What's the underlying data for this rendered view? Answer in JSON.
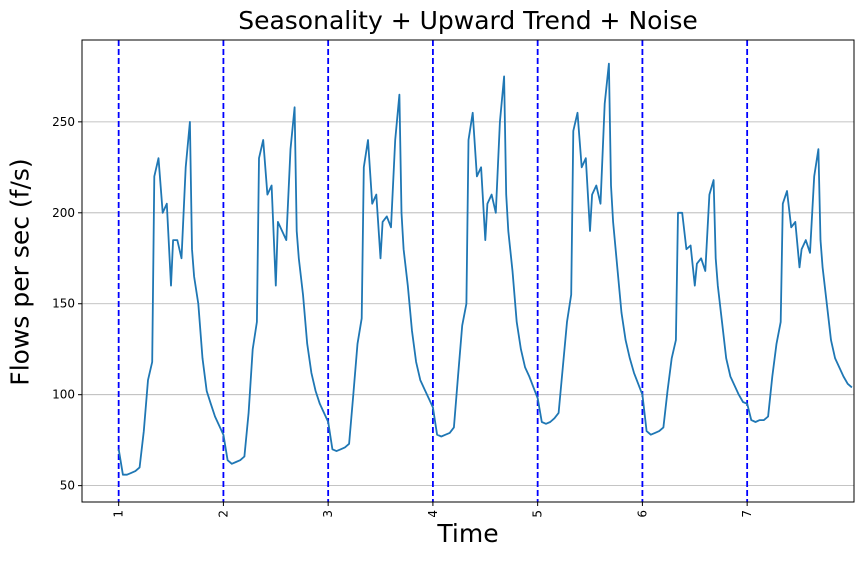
{
  "chart_data": {
    "type": "line",
    "title": "Seasonality + Upward Trend + Noise",
    "xlabel": "Time",
    "ylabel": "Flows per sec (f/s)",
    "xlim": [
      0.65,
      8.02
    ],
    "ylim": [
      41,
      295
    ],
    "xticks": [
      1,
      2,
      3,
      4,
      5,
      6,
      7
    ],
    "yticks": [
      50,
      100,
      150,
      200,
      250
    ],
    "grid": "y-major",
    "line_color": "#1f77b4",
    "vline_color": "#0000ff",
    "vlines": [
      1,
      2,
      3,
      4,
      5,
      6,
      7
    ],
    "series": [
      {
        "values": [
          [
            1.0,
            70
          ],
          [
            1.04,
            56
          ],
          [
            1.08,
            56
          ],
          [
            1.12,
            57
          ],
          [
            1.16,
            58
          ],
          [
            1.2,
            60
          ],
          [
            1.24,
            80
          ],
          [
            1.28,
            108
          ],
          [
            1.32,
            118
          ],
          [
            1.34,
            220
          ],
          [
            1.38,
            230
          ],
          [
            1.42,
            200
          ],
          [
            1.46,
            205
          ],
          [
            1.5,
            160
          ],
          [
            1.52,
            185
          ],
          [
            1.56,
            185
          ],
          [
            1.6,
            175
          ],
          [
            1.64,
            225
          ],
          [
            1.68,
            250
          ],
          [
            1.7,
            180
          ],
          [
            1.72,
            165
          ],
          [
            1.76,
            150
          ],
          [
            1.8,
            120
          ],
          [
            1.84,
            102
          ],
          [
            1.88,
            95
          ],
          [
            1.92,
            88
          ],
          [
            1.96,
            83
          ],
          [
            2.0,
            78
          ],
          [
            2.04,
            64
          ],
          [
            2.08,
            62
          ],
          [
            2.12,
            63
          ],
          [
            2.16,
            64
          ],
          [
            2.2,
            66
          ],
          [
            2.24,
            90
          ],
          [
            2.28,
            125
          ],
          [
            2.32,
            140
          ],
          [
            2.34,
            230
          ],
          [
            2.38,
            240
          ],
          [
            2.42,
            210
          ],
          [
            2.46,
            215
          ],
          [
            2.5,
            160
          ],
          [
            2.52,
            195
          ],
          [
            2.56,
            190
          ],
          [
            2.6,
            185
          ],
          [
            2.64,
            235
          ],
          [
            2.68,
            258
          ],
          [
            2.7,
            190
          ],
          [
            2.72,
            175
          ],
          [
            2.76,
            155
          ],
          [
            2.8,
            128
          ],
          [
            2.84,
            112
          ],
          [
            2.88,
            102
          ],
          [
            2.92,
            95
          ],
          [
            2.96,
            90
          ],
          [
            3.0,
            85
          ],
          [
            3.04,
            70
          ],
          [
            3.08,
            69
          ],
          [
            3.12,
            70
          ],
          [
            3.16,
            71
          ],
          [
            3.2,
            73
          ],
          [
            3.24,
            100
          ],
          [
            3.28,
            128
          ],
          [
            3.32,
            142
          ],
          [
            3.34,
            225
          ],
          [
            3.38,
            240
          ],
          [
            3.42,
            205
          ],
          [
            3.46,
            210
          ],
          [
            3.5,
            175
          ],
          [
            3.52,
            195
          ],
          [
            3.56,
            198
          ],
          [
            3.6,
            192
          ],
          [
            3.64,
            240
          ],
          [
            3.68,
            265
          ],
          [
            3.7,
            200
          ],
          [
            3.72,
            180
          ],
          [
            3.76,
            160
          ],
          [
            3.8,
            135
          ],
          [
            3.84,
            118
          ],
          [
            3.88,
            108
          ],
          [
            3.92,
            103
          ],
          [
            3.96,
            98
          ],
          [
            4.0,
            93
          ],
          [
            4.04,
            78
          ],
          [
            4.08,
            77
          ],
          [
            4.12,
            78
          ],
          [
            4.16,
            79
          ],
          [
            4.2,
            82
          ],
          [
            4.24,
            110
          ],
          [
            4.28,
            138
          ],
          [
            4.32,
            150
          ],
          [
            4.34,
            240
          ],
          [
            4.38,
            255
          ],
          [
            4.42,
            220
          ],
          [
            4.46,
            225
          ],
          [
            4.5,
            185
          ],
          [
            4.52,
            205
          ],
          [
            4.56,
            210
          ],
          [
            4.6,
            200
          ],
          [
            4.64,
            250
          ],
          [
            4.68,
            275
          ],
          [
            4.7,
            210
          ],
          [
            4.72,
            190
          ],
          [
            4.76,
            168
          ],
          [
            4.8,
            140
          ],
          [
            4.84,
            125
          ],
          [
            4.88,
            115
          ],
          [
            4.92,
            110
          ],
          [
            4.96,
            104
          ],
          [
            5.0,
            98
          ],
          [
            5.04,
            85
          ],
          [
            5.08,
            84
          ],
          [
            5.12,
            85
          ],
          [
            5.16,
            87
          ],
          [
            5.2,
            90
          ],
          [
            5.24,
            115
          ],
          [
            5.28,
            140
          ],
          [
            5.32,
            155
          ],
          [
            5.34,
            245
          ],
          [
            5.38,
            255
          ],
          [
            5.42,
            225
          ],
          [
            5.46,
            230
          ],
          [
            5.5,
            190
          ],
          [
            5.52,
            210
          ],
          [
            5.56,
            215
          ],
          [
            5.6,
            205
          ],
          [
            5.64,
            260
          ],
          [
            5.68,
            282
          ],
          [
            5.7,
            215
          ],
          [
            5.72,
            195
          ],
          [
            5.76,
            170
          ],
          [
            5.8,
            145
          ],
          [
            5.84,
            130
          ],
          [
            5.88,
            120
          ],
          [
            5.92,
            112
          ],
          [
            5.96,
            106
          ],
          [
            6.0,
            100
          ],
          [
            6.04,
            80
          ],
          [
            6.08,
            78
          ],
          [
            6.12,
            79
          ],
          [
            6.16,
            80
          ],
          [
            6.2,
            82
          ],
          [
            6.24,
            102
          ],
          [
            6.28,
            120
          ],
          [
            6.32,
            130
          ],
          [
            6.34,
            200
          ],
          [
            6.38,
            200
          ],
          [
            6.42,
            180
          ],
          [
            6.46,
            182
          ],
          [
            6.5,
            160
          ],
          [
            6.52,
            172
          ],
          [
            6.56,
            175
          ],
          [
            6.6,
            168
          ],
          [
            6.64,
            210
          ],
          [
            6.68,
            218
          ],
          [
            6.7,
            175
          ],
          [
            6.72,
            160
          ],
          [
            6.76,
            140
          ],
          [
            6.8,
            120
          ],
          [
            6.84,
            110
          ],
          [
            6.88,
            105
          ],
          [
            6.92,
            100
          ],
          [
            6.96,
            96
          ],
          [
            7.0,
            95
          ],
          [
            7.04,
            86
          ],
          [
            7.08,
            85
          ],
          [
            7.12,
            86
          ],
          [
            7.16,
            86
          ],
          [
            7.2,
            88
          ],
          [
            7.24,
            110
          ],
          [
            7.28,
            128
          ],
          [
            7.32,
            140
          ],
          [
            7.34,
            205
          ],
          [
            7.38,
            212
          ],
          [
            7.42,
            192
          ],
          [
            7.46,
            195
          ],
          [
            7.5,
            170
          ],
          [
            7.52,
            180
          ],
          [
            7.56,
            185
          ],
          [
            7.6,
            178
          ],
          [
            7.64,
            220
          ],
          [
            7.68,
            235
          ],
          [
            7.7,
            185
          ],
          [
            7.72,
            170
          ],
          [
            7.76,
            150
          ],
          [
            7.8,
            130
          ],
          [
            7.84,
            120
          ],
          [
            7.88,
            115
          ],
          [
            7.92,
            110
          ],
          [
            7.96,
            106
          ],
          [
            8.0,
            104
          ]
        ]
      }
    ]
  }
}
